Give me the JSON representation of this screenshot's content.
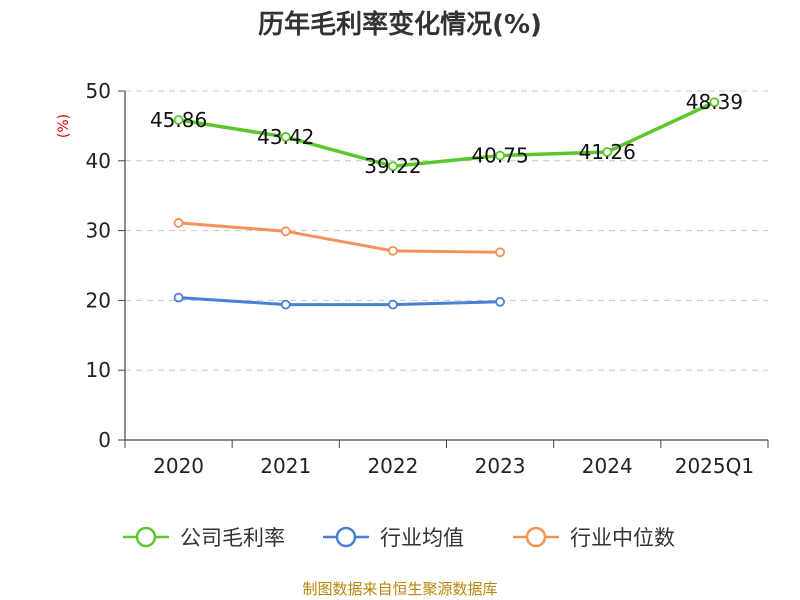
{
  "chart_data": {
    "type": "line",
    "title": "历年毛利率变化情况(%)",
    "ylabel": "(%)",
    "xlabel": "",
    "categories": [
      "2020",
      "2021",
      "2022",
      "2023",
      "2024",
      "2025Q1"
    ],
    "ylim": [
      0,
      50
    ],
    "yticks": [
      0,
      10,
      20,
      30,
      40,
      50
    ],
    "grid": "horizontal dashed",
    "legend_position": "bottom",
    "series": [
      {
        "name": "公司毛利率",
        "color": "#5cc72a",
        "values": [
          45.86,
          43.42,
          39.22,
          40.75,
          41.26,
          48.39
        ],
        "labels": [
          "45.86",
          "43.42",
          "39.22",
          "40.75",
          "41.26",
          "48.39"
        ]
      },
      {
        "name": "行业均值",
        "color": "#4a7fd6",
        "values": [
          20.4,
          19.4,
          19.4,
          19.8,
          null,
          null
        ]
      },
      {
        "name": "行业中位数",
        "color": "#f4925a",
        "values": [
          31.1,
          29.9,
          27.1,
          26.9,
          null,
          null
        ]
      }
    ]
  },
  "source": "制图数据来自恒生聚源数据库"
}
